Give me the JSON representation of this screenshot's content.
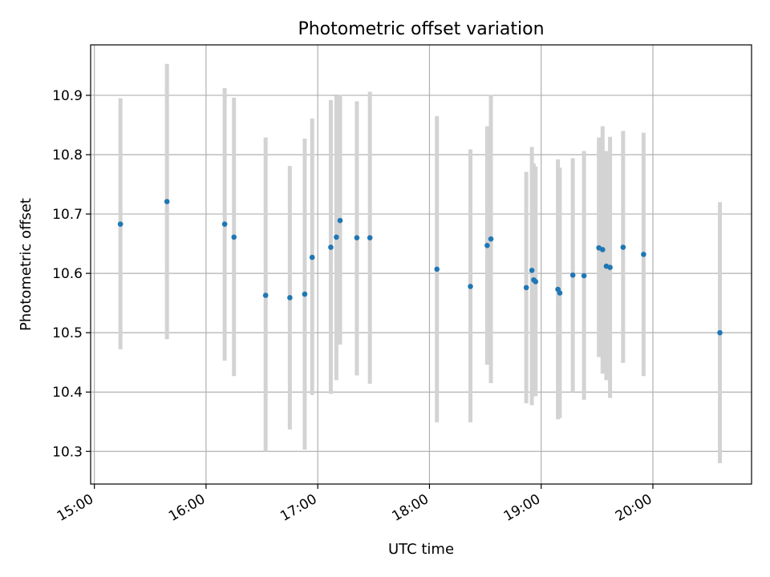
{
  "chart_data": {
    "type": "scatter",
    "title": "Photometric offset variation",
    "xlabel": "UTC time",
    "ylabel": "Photometric offset",
    "x_tick_labels": [
      "15:00",
      "16:00",
      "17:00",
      "18:00",
      "19:00",
      "20:00"
    ],
    "y_tick_labels": [
      "10.3",
      "10.4",
      "10.5",
      "10.6",
      "10.7",
      "10.8",
      "10.9"
    ],
    "xlim": [
      "14:58",
      "20:53"
    ],
    "ylim": [
      10.245,
      10.985
    ],
    "grid": true,
    "colors": {
      "points": "#1f77b4",
      "error_bars": "#d3d3d3"
    },
    "points": [
      {
        "time": "15:14",
        "y": 10.683,
        "low": 10.472,
        "high": 10.895
      },
      {
        "time": "15:39",
        "y": 10.721,
        "low": 10.489,
        "high": 10.953
      },
      {
        "time": "16:10",
        "y": 10.683,
        "low": 10.453,
        "high": 10.912
      },
      {
        "time": "16:15",
        "y": 10.661,
        "low": 10.427,
        "high": 10.896
      },
      {
        "time": "16:32",
        "y": 10.563,
        "low": 10.3,
        "high": 10.829
      },
      {
        "time": "16:45",
        "y": 10.559,
        "low": 10.337,
        "high": 10.781
      },
      {
        "time": "16:53",
        "y": 10.565,
        "low": 10.303,
        "high": 10.827
      },
      {
        "time": "16:57",
        "y": 10.627,
        "low": 10.395,
        "high": 10.861
      },
      {
        "time": "17:07",
        "y": 10.644,
        "low": 10.397,
        "high": 10.892
      },
      {
        "time": "17:10",
        "y": 10.661,
        "low": 10.42,
        "high": 10.899
      },
      {
        "time": "17:12",
        "y": 10.689,
        "low": 10.48,
        "high": 10.901
      },
      {
        "time": "17:21",
        "y": 10.66,
        "low": 10.428,
        "high": 10.89
      },
      {
        "time": "17:28",
        "y": 10.66,
        "low": 10.414,
        "high": 10.906
      },
      {
        "time": "18:04",
        "y": 10.607,
        "low": 10.349,
        "high": 10.865
      },
      {
        "time": "18:22",
        "y": 10.578,
        "low": 10.349,
        "high": 10.809
      },
      {
        "time": "18:31",
        "y": 10.647,
        "low": 10.446,
        "high": 10.848
      },
      {
        "time": "18:33",
        "y": 10.658,
        "low": 10.415,
        "high": 10.901
      },
      {
        "time": "18:52",
        "y": 10.576,
        "low": 10.381,
        "high": 10.771
      },
      {
        "time": "18:55",
        "y": 10.605,
        "low": 10.378,
        "high": 10.813
      },
      {
        "time": "18:56",
        "y": 10.589,
        "low": 10.393,
        "high": 10.785
      },
      {
        "time": "18:57",
        "y": 10.586,
        "low": 10.393,
        "high": 10.78
      },
      {
        "time": "19:09",
        "y": 10.573,
        "low": 10.354,
        "high": 10.792
      },
      {
        "time": "19:10",
        "y": 10.567,
        "low": 10.356,
        "high": 10.778
      },
      {
        "time": "19:17",
        "y": 10.597,
        "low": 10.4,
        "high": 10.794
      },
      {
        "time": "19:23",
        "y": 10.596,
        "low": 10.387,
        "high": 10.806
      },
      {
        "time": "19:31",
        "y": 10.643,
        "low": 10.459,
        "high": 10.829
      },
      {
        "time": "19:33",
        "y": 10.64,
        "low": 10.431,
        "high": 10.848
      },
      {
        "time": "19:35",
        "y": 10.612,
        "low": 10.42,
        "high": 10.806
      },
      {
        "time": "19:37",
        "y": 10.61,
        "low": 10.39,
        "high": 10.83
      },
      {
        "time": "19:44",
        "y": 10.644,
        "low": 10.449,
        "high": 10.84
      },
      {
        "time": "19:55",
        "y": 10.632,
        "low": 10.427,
        "high": 10.837
      },
      {
        "time": "20:36",
        "y": 10.5,
        "low": 10.28,
        "high": 10.72
      }
    ]
  }
}
